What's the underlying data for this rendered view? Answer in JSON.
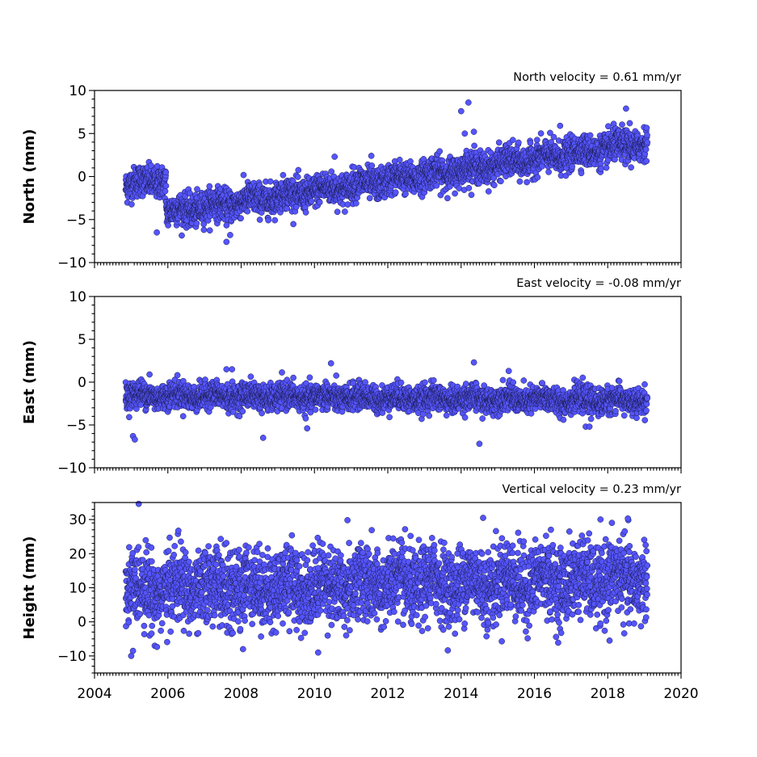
{
  "chart_data": [
    {
      "type": "scatter",
      "panel": "north",
      "title": "North velocity = 0.61 mm/yr",
      "ylabel": "North (mm)",
      "xlim": [
        2004,
        2020
      ],
      "ylim": [
        -10,
        10
      ],
      "yticks": [
        -10,
        -5,
        0,
        5,
        10
      ],
      "color": "#5555ff",
      "velocity_mm_per_yr": 0.61,
      "series": [
        {
          "segments": [
            {
              "x_start": 2004.85,
              "x_end": 2005.95,
              "y_start": -1.0,
              "y_end": -0.3
            },
            {
              "x_start": 2005.95,
              "x_end": 2019.08,
              "y_start": -4.2,
              "y_end": 3.9
            }
          ],
          "scatter_sd": 0.9,
          "outliers": [
            {
              "x": 2005.7,
              "y": -6.5
            },
            {
              "x": 2007.6,
              "y": -7.6
            },
            {
              "x": 2007.7,
              "y": -6.8
            },
            {
              "x": 2010.55,
              "y": 2.3
            },
            {
              "x": 2011.55,
              "y": 2.4
            },
            {
              "x": 2014.0,
              "y": 7.6
            },
            {
              "x": 2014.2,
              "y": 8.6
            },
            {
              "x": 2014.1,
              "y": 5.0
            },
            {
              "x": 2014.35,
              "y": 5.2
            },
            {
              "x": 2016.7,
              "y": 5.9
            },
            {
              "x": 2018.5,
              "y": 7.9
            },
            {
              "x": 2018.6,
              "y": 6.2
            }
          ]
        }
      ]
    },
    {
      "type": "scatter",
      "panel": "east",
      "title": "East velocity = -0.08 mm/yr",
      "ylabel": "East (mm)",
      "xlim": [
        2004,
        2020
      ],
      "ylim": [
        -10,
        10
      ],
      "yticks": [
        -10,
        -5,
        0,
        5,
        10
      ],
      "color": "#5555ff",
      "velocity_mm_per_yr": -0.08,
      "series": [
        {
          "segments": [
            {
              "x_start": 2004.85,
              "x_end": 2019.08,
              "y_start": -1.5,
              "y_end": -2.2
            }
          ],
          "scatter_sd": 0.75,
          "outliers": [
            {
              "x": 2005.05,
              "y": -6.3
            },
            {
              "x": 2005.1,
              "y": -6.7
            },
            {
              "x": 2005.5,
              "y": 0.9
            },
            {
              "x": 2007.6,
              "y": 1.5
            },
            {
              "x": 2007.75,
              "y": 1.5
            },
            {
              "x": 2008.6,
              "y": -6.5
            },
            {
              "x": 2009.8,
              "y": -5.4
            },
            {
              "x": 2010.45,
              "y": 2.2
            },
            {
              "x": 2014.35,
              "y": 2.3
            },
            {
              "x": 2014.5,
              "y": -7.2
            },
            {
              "x": 2015.3,
              "y": 1.3
            },
            {
              "x": 2017.4,
              "y": -5.2
            },
            {
              "x": 2017.5,
              "y": -5.2
            }
          ]
        }
      ]
    },
    {
      "type": "scatter",
      "panel": "height",
      "title": "Vertical velocity = 0.23 mm/yr",
      "ylabel": "Height (mm)",
      "xlim": [
        2004,
        2020
      ],
      "ylim": [
        -15,
        35
      ],
      "yticks": [
        -10,
        0,
        10,
        20,
        30
      ],
      "color": "#5555ff",
      "velocity_mm_per_yr": 0.23,
      "series": [
        {
          "segments": [
            {
              "x_start": 2004.85,
              "x_end": 2019.08,
              "y_start": 9.5,
              "y_end": 12.5
            }
          ],
          "scatter_sd": 5.5,
          "outliers": [
            {
              "x": 2005.0,
              "y": -10.0
            },
            {
              "x": 2005.05,
              "y": -8.5
            },
            {
              "x": 2008.05,
              "y": -8.0
            },
            {
              "x": 2010.1,
              "y": -9.0
            },
            {
              "x": 2010.9,
              "y": 29.8
            },
            {
              "x": 2014.6,
              "y": 30.5
            },
            {
              "x": 2018.55,
              "y": 30.3
            },
            {
              "x": 2018.05,
              "y": -5.5
            }
          ]
        }
      ]
    }
  ],
  "xaxis": {
    "ticks": [
      2004,
      2006,
      2008,
      2010,
      2012,
      2014,
      2016,
      2018,
      2020
    ]
  }
}
